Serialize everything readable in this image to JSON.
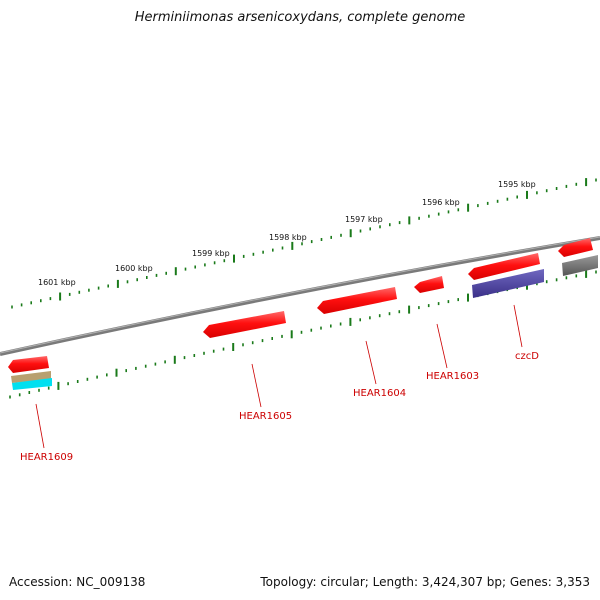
{
  "title": "Herminiimonas arsenicoxydans, complete genome",
  "accession": "Accession: NC_009138",
  "stats": "Topology: circular; Length: 3,424,307 bp; Genes: 3,353",
  "scale_labels": [
    "1601 kbp",
    "1600 kbp",
    "1599 kbp",
    "1598 kbp",
    "1597 kbp",
    "1596 kbp",
    "1595 kbp"
  ],
  "gene_labels": [
    "HEAR1609",
    "HEAR1605",
    "HEAR1604",
    "HEAR1603",
    "czcD"
  ],
  "colors": {
    "backbone": "#808080",
    "gene": "#ff1a1a",
    "gene_label": "#cc0000",
    "tick": "#1a7a1a",
    "purple_feature": "#4a3f9a",
    "gray_feature": "#666666",
    "tan_feature": "#b8a070",
    "cyan_feature": "#00e0f0"
  }
}
